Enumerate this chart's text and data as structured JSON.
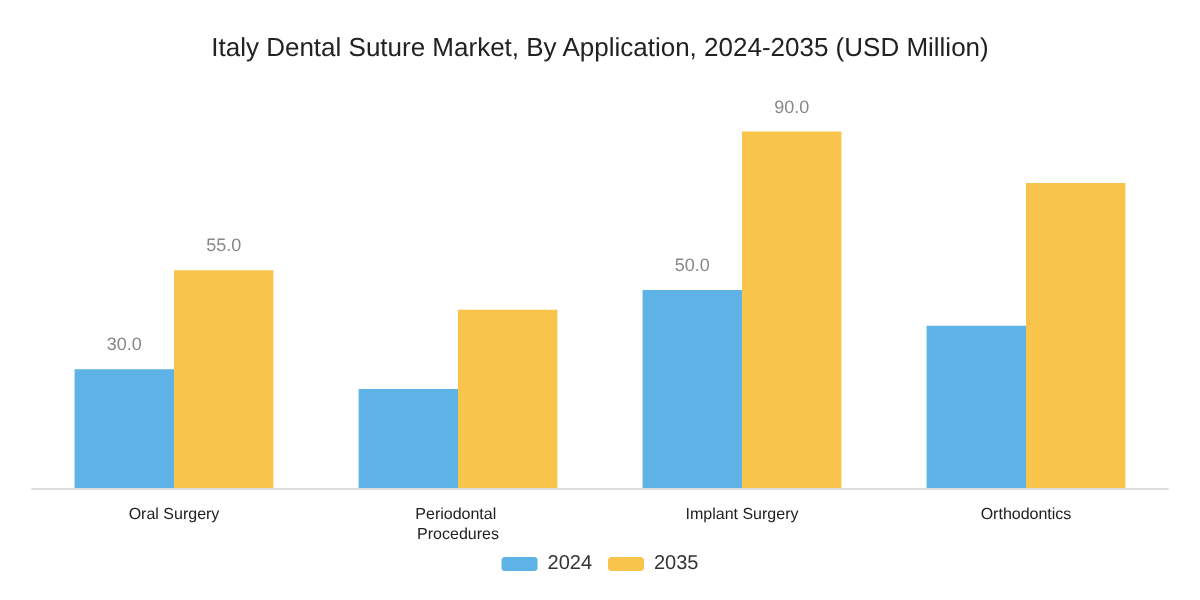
{
  "chart_data": {
    "type": "bar",
    "title": "Italy Dental Suture Market, By Application, 2024-2035 (USD Million)",
    "categories": [
      "Oral Surgery",
      "Periodontal Procedures",
      "Implant Surgery",
      "Orthodontics"
    ],
    "series": [
      {
        "name": "2024",
        "color": "#5db3e6",
        "values": [
          30,
          25,
          50,
          41
        ],
        "value_labels": [
          "30.0",
          null,
          "50.0",
          null
        ]
      },
      {
        "name": "2035",
        "color": "#f8c44c",
        "values": [
          55,
          45,
          90,
          77
        ],
        "value_labels": [
          "55.0",
          null,
          "90.0",
          null
        ]
      }
    ],
    "legend": "bottom",
    "grid": false
  }
}
